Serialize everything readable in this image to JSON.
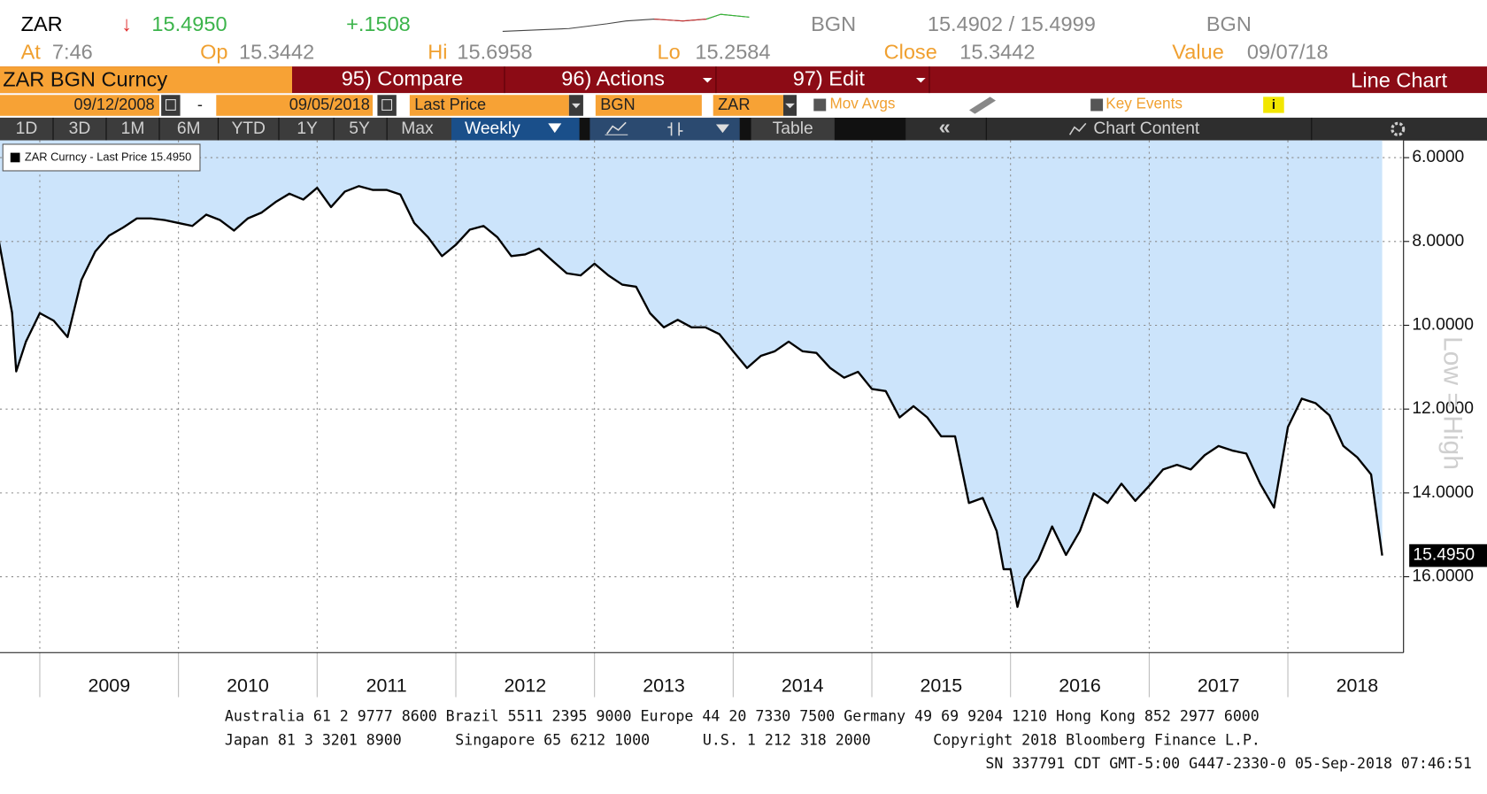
{
  "header": {
    "ticker": "ZAR",
    "direction": "↓",
    "last": "15.4950",
    "change": "+.1508",
    "source": "BGN",
    "bid_ask": "15.4902 / 15.4999",
    "source2": "BGN",
    "stats": [
      {
        "label": "At",
        "value": "7:46"
      },
      {
        "label": "Op",
        "value": "15.3442"
      },
      {
        "label": "Hi",
        "value": "15.6958"
      },
      {
        "label": "Lo",
        "value": "15.2584"
      },
      {
        "label": "Close",
        "value": "15.3442"
      },
      {
        "label": "Value",
        "value": "09/07/18"
      }
    ]
  },
  "toolbar": {
    "security": "ZAR BGN Curncy",
    "menus": [
      "95) Compare",
      "96) Actions",
      "97) Edit"
    ],
    "view": "Line Chart",
    "start_date": "09/12/2008",
    "date_separator": "-",
    "end_date": "09/05/2018",
    "field": "Last Price",
    "source": "BGN",
    "currency": "ZAR",
    "mov_avgs": "Mov Avgs",
    "key_events": "Key Events",
    "periods": [
      "1D",
      "3D",
      "1M",
      "6M",
      "YTD",
      "1Y",
      "5Y",
      "Max"
    ],
    "frequency": "Weekly",
    "table": "Table",
    "chart_content": "Chart Content"
  },
  "chart_data": {
    "type": "line",
    "annotation": "Low = High",
    "y_inverted": true,
    "grid": true,
    "legend": "upper left",
    "area_color": "#cce4fb",
    "x": [
      2008.7,
      2008.8,
      2008.83,
      2008.9,
      2009.0,
      2009.1,
      2009.2,
      2009.3,
      2009.4,
      2009.5,
      2009.6,
      2009.7,
      2009.8,
      2009.9,
      2010.0,
      2010.1,
      2010.2,
      2010.3,
      2010.4,
      2010.5,
      2010.6,
      2010.7,
      2010.8,
      2010.9,
      2011.0,
      2011.1,
      2011.2,
      2011.3,
      2011.4,
      2011.5,
      2011.6,
      2011.7,
      2011.8,
      2011.9,
      2012.0,
      2012.1,
      2012.2,
      2012.3,
      2012.4,
      2012.5,
      2012.6,
      2012.7,
      2012.8,
      2012.9,
      2013.0,
      2013.1,
      2013.2,
      2013.3,
      2013.4,
      2013.5,
      2013.6,
      2013.7,
      2013.8,
      2013.9,
      2014.0,
      2014.1,
      2014.2,
      2014.3,
      2014.4,
      2014.5,
      2014.6,
      2014.7,
      2014.8,
      2014.9,
      2015.0,
      2015.1,
      2015.2,
      2015.3,
      2015.4,
      2015.5,
      2015.6,
      2015.7,
      2015.8,
      2015.9,
      2015.95,
      2016.0,
      2016.05,
      2016.1,
      2016.2,
      2016.3,
      2016.4,
      2016.5,
      2016.6,
      2016.7,
      2016.8,
      2016.9,
      2017.0,
      2017.1,
      2017.2,
      2017.3,
      2017.4,
      2017.5,
      2017.6,
      2017.7,
      2017.8,
      2017.9,
      2018.0,
      2018.1,
      2018.2,
      2018.3,
      2018.4,
      2018.5,
      2018.6,
      2018.68
    ],
    "series": [
      {
        "name": "ZAR Curncy - Last Price 15.4950",
        "color": "#000000",
        "values": [
          7.9,
          9.7,
          11.1,
          10.39,
          9.71,
          9.89,
          10.28,
          8.92,
          8.24,
          7.86,
          7.67,
          7.45,
          7.45,
          7.49,
          7.56,
          7.63,
          7.36,
          7.49,
          7.74,
          7.45,
          7.31,
          7.06,
          6.86,
          7.0,
          6.72,
          7.18,
          6.81,
          6.68,
          6.77,
          6.77,
          6.88,
          7.56,
          7.9,
          8.35,
          8.08,
          7.72,
          7.63,
          7.9,
          8.35,
          8.31,
          8.17,
          8.47,
          8.76,
          8.81,
          8.53,
          8.81,
          9.03,
          9.08,
          9.71,
          10.05,
          9.87,
          10.05,
          10.05,
          10.21,
          10.62,
          11.02,
          10.73,
          10.62,
          10.39,
          10.62,
          10.66,
          11.02,
          11.25,
          11.11,
          11.52,
          11.57,
          12.2,
          11.93,
          12.2,
          12.65,
          12.65,
          14.24,
          14.12,
          14.91,
          15.82,
          15.82,
          16.72,
          16.05,
          15.59,
          14.8,
          15.48,
          14.91,
          14.01,
          14.24,
          13.78,
          14.19,
          13.83,
          13.44,
          13.33,
          13.44,
          13.1,
          12.88,
          12.99,
          13.06,
          13.78,
          14.35,
          12.43,
          11.75,
          11.86,
          12.15,
          12.88,
          13.15,
          13.56,
          15.495
        ]
      }
    ],
    "last_label": {
      "value": 15.495,
      "label": "15.4950"
    },
    "xlim": [
      2008.713,
      2018.834
    ],
    "xticks": [
      2009,
      2010,
      2011,
      2012,
      2013,
      2014,
      2015,
      2016,
      2017,
      2018
    ],
    "ylim": [
      5.59,
      17.81
    ],
    "yticks": [
      {
        "value": 6,
        "label": "6.0000"
      },
      {
        "value": 8,
        "label": "8.0000"
      },
      {
        "value": 10,
        "label": "10.0000"
      },
      {
        "value": 12,
        "label": "12.0000"
      },
      {
        "value": 14,
        "label": "14.0000"
      },
      {
        "value": 16,
        "label": "16.0000"
      }
    ]
  },
  "footer": {
    "line1": "Australia 61 2 9777 8600 Brazil 5511 2395 9000 Europe 44 20 7330 7500 Germany 49 69 9204 1210 Hong Kong 852 2977 6000",
    "line2": [
      "Japan 81 3 3201 8900",
      "Singapore 65 6212 1000",
      "U.S. 1 212 318 2000",
      "Copyright 2018 Bloomberg Finance L.P."
    ],
    "line3": "SN 337791 CDT  GMT-5:00 G447-2330-0 05-Sep-2018 07:46:51"
  }
}
